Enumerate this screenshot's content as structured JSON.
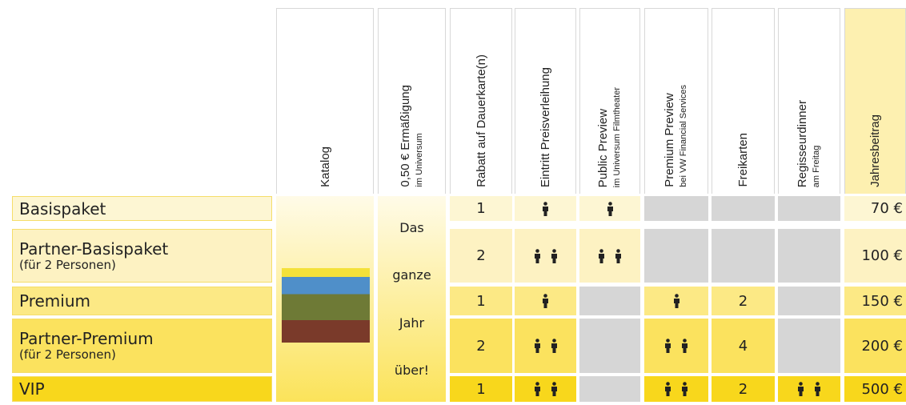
{
  "header": {
    "columns": [
      {
        "label": "Katalog"
      },
      {
        "label": "0,50 € Ermäßigung",
        "sublabel": "im Universum"
      },
      {
        "label": "Rabatt auf Dauerkarte(n)"
      },
      {
        "label": "Eintritt Preisverleihung"
      },
      {
        "label": "Public Preview",
        "sublabel": "im Universum Filmtheater"
      },
      {
        "label": "Premium Preview",
        "sublabel": "bei VW Financial Services"
      },
      {
        "label": "Freikarten"
      },
      {
        "label": "Regisseurdinner",
        "sublabel": "am Freitag"
      },
      {
        "label": "Jahresbeitrag"
      }
    ]
  },
  "span_text": [
    "Das",
    "ganze",
    "Jahr",
    "über!"
  ],
  "rows": [
    {
      "name": "Basispaket",
      "rabatt": "1",
      "eintritt": 1,
      "public_preview": 1,
      "premium_preview": null,
      "freikarten": null,
      "regisseurdinner": null,
      "jahresbeitrag": "70 €"
    },
    {
      "name": "Partner-Basispaket",
      "subname": "(für 2 Personen)",
      "rabatt": "2",
      "eintritt": 2,
      "public_preview": 2,
      "premium_preview": null,
      "freikarten": null,
      "regisseurdinner": null,
      "jahresbeitrag": "100 €"
    },
    {
      "name": "Premium",
      "rabatt": "1",
      "eintritt": 1,
      "public_preview": null,
      "premium_preview": 1,
      "freikarten": "2",
      "regisseurdinner": null,
      "jahresbeitrag": "150 €"
    },
    {
      "name": "Partner-Premium",
      "subname": "(für 2 Personen)",
      "rabatt": "2",
      "eintritt": 2,
      "public_preview": null,
      "premium_preview": 2,
      "freikarten": "4",
      "regisseurdinner": null,
      "jahresbeitrag": "200 €"
    },
    {
      "name": "VIP",
      "rabatt": "1",
      "eintritt": 2,
      "public_preview": null,
      "premium_preview": 2,
      "freikarten": "2",
      "regisseurdinner": 2,
      "jahresbeitrag": "500 €"
    }
  ]
}
